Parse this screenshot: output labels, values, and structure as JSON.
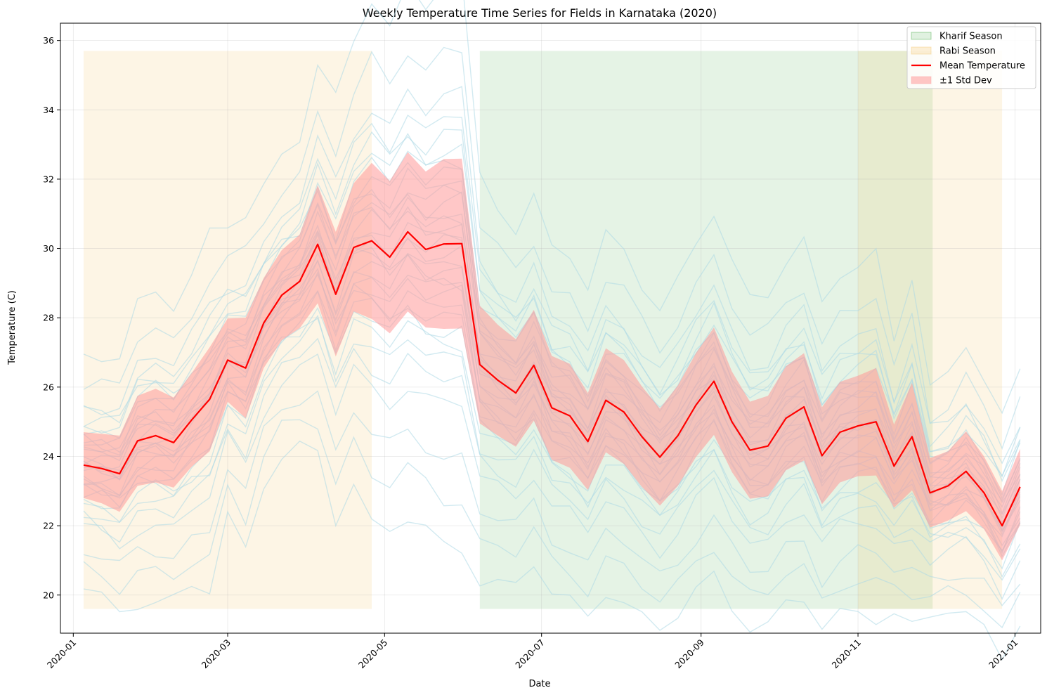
{
  "chart_data": {
    "type": "line",
    "title": "Weekly Temperature Time Series for Fields in Karnataka (2020)",
    "xlabel": "Date",
    "ylabel": "Temperature (C)",
    "xlim": [
      "2019-12-27",
      "2021-01-11"
    ],
    "ylim": [
      18.9,
      36.5
    ],
    "grid": true,
    "legend_placement": "top-right",
    "x_tick_labels": [
      "2020-01",
      "2020-03",
      "2020-05",
      "2020-07",
      "2020-09",
      "2020-11",
      "2021-01"
    ],
    "x_ticks": [
      "2020-01-01",
      "2020-03-01",
      "2020-05-01",
      "2020-07-01",
      "2020-09-01",
      "2020-11-01",
      "2021-01-01"
    ],
    "y_ticks": [
      20,
      22,
      24,
      26,
      28,
      30,
      32,
      34,
      36
    ],
    "seasons": [
      {
        "name": "Kharif Season",
        "start": "2020-06-07",
        "end": "2020-11-30",
        "color": "#2ca02c"
      },
      {
        "name": "Rabi Season",
        "start": "2020-01-05",
        "end": "2020-04-26",
        "color": "#f5c060"
      },
      {
        "name": "Rabi Season",
        "start": "2020-11-01",
        "end": "2020-12-27",
        "color": "#f5c060"
      }
    ],
    "season_band_y": [
      19.6,
      35.7
    ],
    "dates": [
      "2020-01-05",
      "2020-01-12",
      "2020-01-19",
      "2020-01-26",
      "2020-02-02",
      "2020-02-09",
      "2020-02-16",
      "2020-02-23",
      "2020-03-01",
      "2020-03-08",
      "2020-03-15",
      "2020-03-22",
      "2020-03-29",
      "2020-04-05",
      "2020-04-12",
      "2020-04-19",
      "2020-04-26",
      "2020-05-03",
      "2020-05-10",
      "2020-05-17",
      "2020-05-24",
      "2020-05-31",
      "2020-06-07",
      "2020-06-14",
      "2020-06-21",
      "2020-06-28",
      "2020-07-05",
      "2020-07-12",
      "2020-07-19",
      "2020-07-26",
      "2020-08-02",
      "2020-08-09",
      "2020-08-16",
      "2020-08-23",
      "2020-08-30",
      "2020-09-06",
      "2020-09-13",
      "2020-09-20",
      "2020-09-27",
      "2020-10-04",
      "2020-10-11",
      "2020-10-18",
      "2020-10-25",
      "2020-11-01",
      "2020-11-08",
      "2020-11-15",
      "2020-11-22",
      "2020-11-29",
      "2020-12-06",
      "2020-12-13",
      "2020-12-20",
      "2020-12-27",
      "2021-01-03"
    ],
    "series": [
      {
        "name": "Mean Temperature",
        "color": "#ff0000",
        "values": [
          23.75,
          23.65,
          23.5,
          24.45,
          24.6,
          24.4,
          25.05,
          25.65,
          26.78,
          26.55,
          27.85,
          28.65,
          29.05,
          30.12,
          28.68,
          30.03,
          30.22,
          29.75,
          30.48,
          29.97,
          30.13,
          30.14,
          26.65,
          26.2,
          25.83,
          26.63,
          25.4,
          25.17,
          24.43,
          25.62,
          25.28,
          24.57,
          23.98,
          24.6,
          25.48,
          26.17,
          25.0,
          24.18,
          24.3,
          25.1,
          25.43,
          24.02,
          24.7,
          24.88,
          25.0,
          23.72,
          24.57,
          22.95,
          23.15,
          23.57,
          22.95,
          22.0,
          23.12
        ]
      },
      {
        "name": "±1 Std Dev",
        "color": "#ff9999",
        "std": [
          0.95,
          1.0,
          1.1,
          1.3,
          1.35,
          1.3,
          1.35,
          1.5,
          1.2,
          1.45,
          1.3,
          1.3,
          1.35,
          1.7,
          1.8,
          1.85,
          2.25,
          2.2,
          2.3,
          2.25,
          2.45,
          2.45,
          1.7,
          1.6,
          1.55,
          1.6,
          1.5,
          1.5,
          1.4,
          1.5,
          1.5,
          1.45,
          1.4,
          1.45,
          1.5,
          1.55,
          1.45,
          1.4,
          1.45,
          1.5,
          1.55,
          1.4,
          1.45,
          1.45,
          1.55,
          1.2,
          1.55,
          1.0,
          1.0,
          1.15,
          1.05,
          1.0,
          1.1
        ]
      }
    ],
    "field_lines_color": "#add8e6",
    "field_offsets": [
      -1.9,
      -1.6,
      -1.35,
      -1.15,
      -1.0,
      -0.85,
      -0.72,
      -0.6,
      -0.5,
      -0.4,
      -0.3,
      -0.2,
      -0.1,
      0.0,
      0.1,
      0.2,
      0.3,
      0.4,
      0.5,
      0.6,
      0.72,
      0.85,
      1.0,
      1.15,
      1.3,
      1.5,
      1.75,
      -3.6,
      -3.0,
      -2.5,
      2.3,
      3.1
    ],
    "legend": [
      {
        "label": "Kharif Season",
        "kind": "patch",
        "color": "#2ca02c"
      },
      {
        "label": "Rabi Season",
        "kind": "patch",
        "color": "#f5c060"
      },
      {
        "label": "Mean Temperature",
        "kind": "line",
        "color": "#ff0000"
      },
      {
        "label": "±1 Std Dev",
        "kind": "patch",
        "color": "#ff9999"
      }
    ]
  }
}
